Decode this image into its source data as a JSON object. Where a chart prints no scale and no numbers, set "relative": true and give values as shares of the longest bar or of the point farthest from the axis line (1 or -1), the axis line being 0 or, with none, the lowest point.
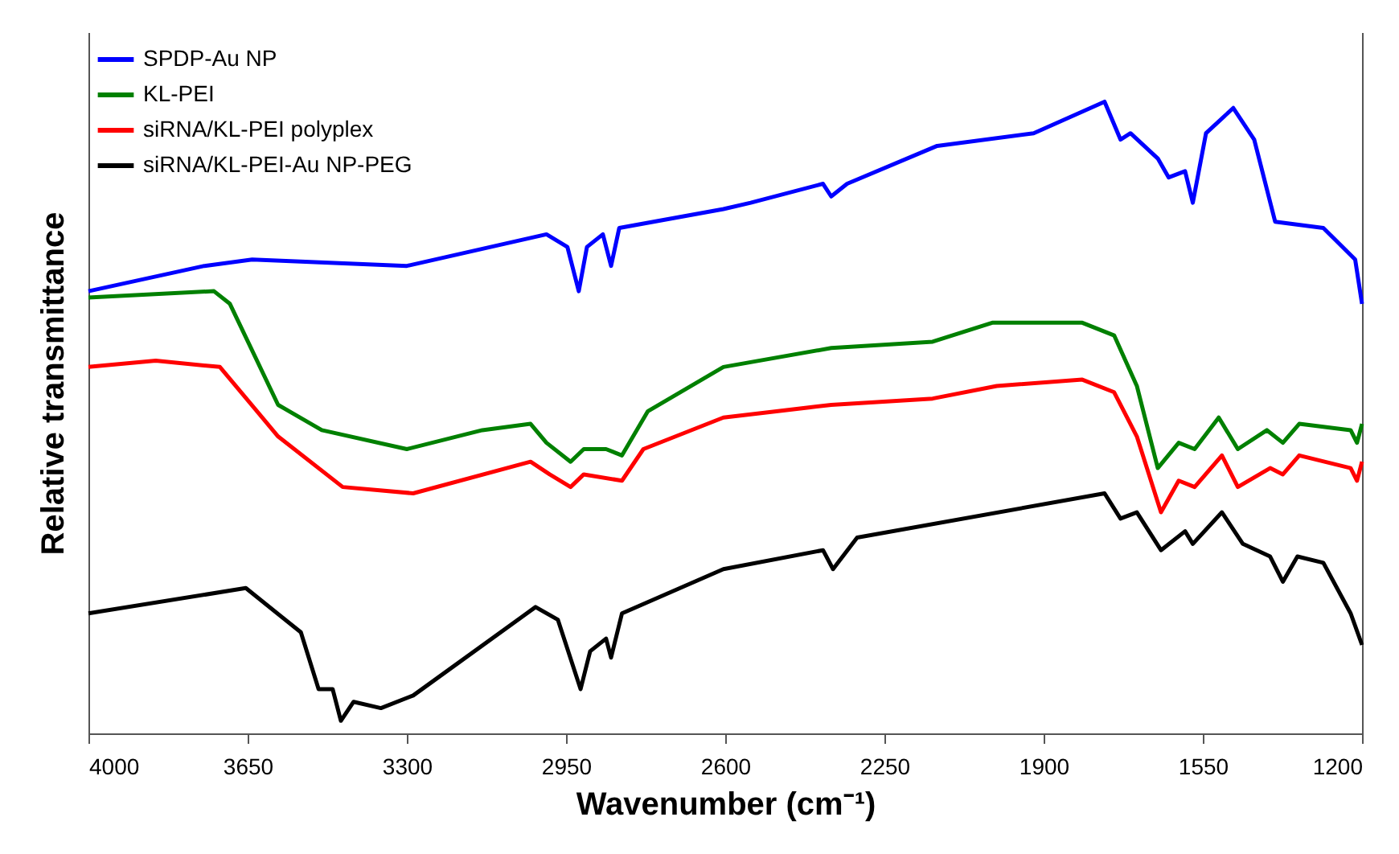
{
  "chart_data": {
    "type": "line",
    "relative": true,
    "xlabel": "Wavenumber (cm⁻¹)",
    "ylabel": "Relative transmittance",
    "xlim": [
      4000,
      1200
    ],
    "xticks": [
      4000,
      3650,
      3300,
      2950,
      2600,
      2250,
      1900,
      1550,
      1200
    ],
    "tick_labels": "x",
    "grid": false,
    "legend": "top left",
    "marker": "none",
    "line_style": "solid",
    "series": [
      {
        "name": "SPDP-Au NP",
        "color": "#0000ff",
        "x": [
          4000,
          3745,
          3640,
          3300,
          2993,
          2947,
          2922,
          2904,
          2869,
          2851,
          2833,
          2604,
          2544,
          2385,
          2367,
          2332,
          2134,
          1922,
          1766,
          1731,
          1709,
          1649,
          1625,
          1589,
          1572,
          1543,
          1483,
          1437,
          1391,
          1285,
          1215,
          1200
        ],
        "values": [
          0.7,
          0.74,
          0.75,
          0.74,
          0.79,
          0.77,
          0.7,
          0.77,
          0.79,
          0.74,
          0.8,
          0.83,
          0.84,
          0.87,
          0.85,
          0.87,
          0.93,
          0.95,
          1.0,
          0.94,
          0.95,
          0.91,
          0.88,
          0.89,
          0.84,
          0.95,
          0.99,
          0.94,
          0.81,
          0.8,
          0.75,
          0.68
        ]
      },
      {
        "name": "KL-PEI",
        "color": "#008000",
        "x": [
          4000,
          3724,
          3689,
          3583,
          3487,
          3300,
          3134,
          3028,
          2993,
          2940,
          2911,
          2862,
          2827,
          2770,
          2604,
          2367,
          2144,
          2013,
          1815,
          1745,
          1695,
          1649,
          1603,
          1568,
          1515,
          1473,
          1409,
          1374,
          1338,
          1225,
          1211,
          1200
        ],
        "values": [
          0.69,
          0.7,
          0.68,
          0.52,
          0.48,
          0.45,
          0.48,
          0.49,
          0.46,
          0.43,
          0.45,
          0.45,
          0.44,
          0.51,
          0.58,
          0.61,
          0.62,
          0.65,
          0.65,
          0.63,
          0.55,
          0.42,
          0.46,
          0.45,
          0.5,
          0.45,
          0.48,
          0.46,
          0.49,
          0.48,
          0.46,
          0.49
        ]
      },
      {
        "name": "siRNA/KL-PEI polyplex",
        "color": "#ff0000",
        "x": [
          4000,
          3852,
          3711,
          3583,
          3441,
          3286,
          3028,
          2986,
          2940,
          2911,
          2827,
          2780,
          2604,
          2367,
          2144,
          2003,
          1815,
          1745,
          1695,
          1642,
          1603,
          1568,
          1508,
          1473,
          1402,
          1374,
          1338,
          1225,
          1211,
          1200
        ],
        "values": [
          0.58,
          0.59,
          0.58,
          0.47,
          0.39,
          0.38,
          0.43,
          0.41,
          0.39,
          0.41,
          0.4,
          0.45,
          0.5,
          0.52,
          0.53,
          0.55,
          0.56,
          0.54,
          0.47,
          0.35,
          0.4,
          0.39,
          0.44,
          0.39,
          0.42,
          0.41,
          0.44,
          0.42,
          0.4,
          0.43
        ]
      },
      {
        "name": "siRNA/KL-PEI-Au NP-PEG",
        "color": "#000000",
        "x": [
          4000,
          3654,
          3533,
          3494,
          3463,
          3445,
          3417,
          3357,
          3286,
          3017,
          2968,
          2918,
          2897,
          2862,
          2851,
          2827,
          2604,
          2385,
          2363,
          2310,
          1766,
          1731,
          1695,
          1642,
          1589,
          1572,
          1508,
          1462,
          1402,
          1374,
          1342,
          1285,
          1225,
          1200
        ],
        "values": [
          0.19,
          0.23,
          0.16,
          0.07,
          0.07,
          0.02,
          0.05,
          0.04,
          0.06,
          0.2,
          0.18,
          0.07,
          0.13,
          0.15,
          0.12,
          0.19,
          0.26,
          0.29,
          0.26,
          0.31,
          0.38,
          0.34,
          0.35,
          0.29,
          0.32,
          0.3,
          0.35,
          0.3,
          0.28,
          0.24,
          0.28,
          0.27,
          0.19,
          0.14
        ]
      }
    ]
  }
}
